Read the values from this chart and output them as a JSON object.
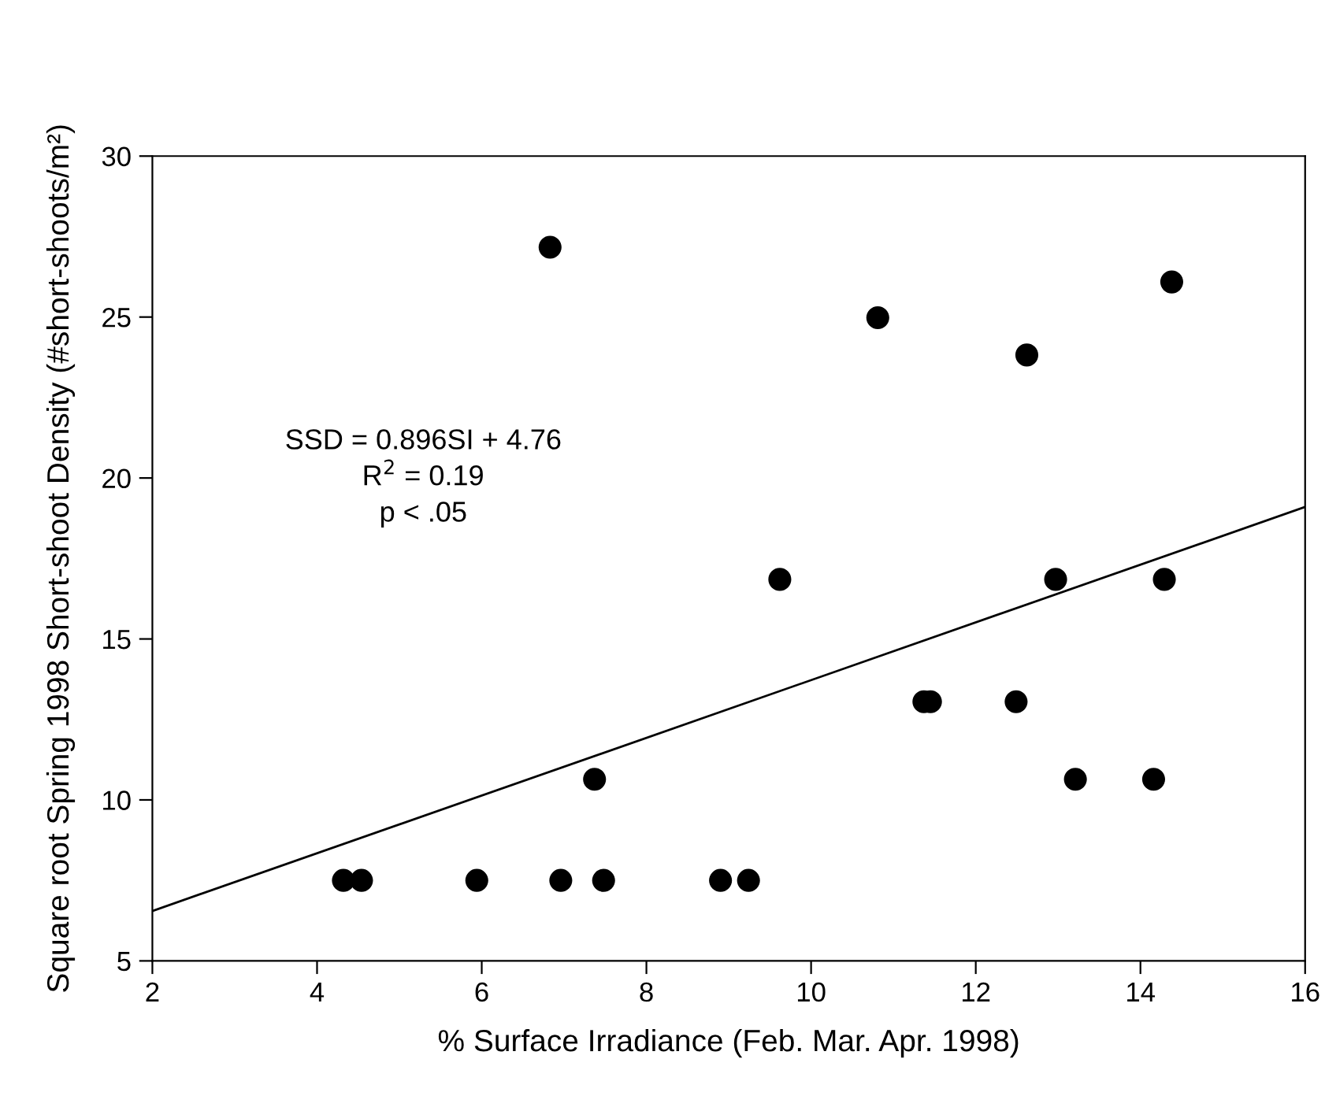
{
  "chart_data": {
    "type": "scatter",
    "xlabel": "% Surface Irradiance (Feb. Mar. Apr. 1998)",
    "ylabel": "Square root Spring 1998 Short-shoot Density (#short-shoots/m²)",
    "xlim": [
      2,
      16
    ],
    "xticks": [
      2,
      4,
      6,
      8,
      10,
      12,
      14,
      16
    ],
    "ylim": [
      5,
      30
    ],
    "yticks": [
      5,
      10,
      15,
      20,
      25,
      30
    ],
    "grid": false,
    "legend": false,
    "marker": "circle",
    "series": [
      {
        "color": "#000000",
        "x": [
          4.32,
          4.54,
          5.94,
          6.83,
          6.96,
          7.37,
          7.48,
          8.9,
          9.24,
          9.62,
          10.81,
          11.37,
          11.45,
          12.49,
          12.62,
          12.97,
          13.21,
          14.16,
          14.29,
          14.38
        ],
        "values": [
          7.5,
          7.5,
          7.5,
          27.17,
          7.5,
          10.64,
          7.5,
          7.5,
          7.5,
          16.85,
          24.98,
          13.05,
          13.05,
          13.05,
          23.82,
          16.85,
          10.64,
          10.64,
          16.85,
          26.09
        ]
      },
      {
        "type": "line",
        "color": "#000000",
        "line_style": "solid",
        "marker": "none",
        "x": [
          2,
          16
        ],
        "values": [
          6.55,
          19.1
        ]
      }
    ],
    "annotations": [
      "SSD = 0.896SI + 4.76",
      "R$^{2}$ = 0.19",
      "p < .05"
    ]
  }
}
